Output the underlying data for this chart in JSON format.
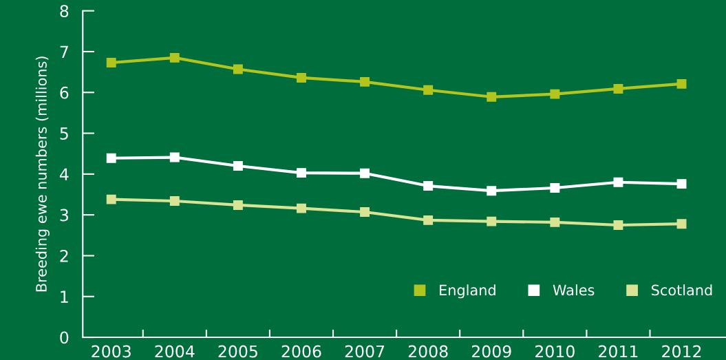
{
  "chart_data": {
    "type": "line",
    "ylabel": "Breeding ewe numbers (millions)",
    "categories": [
      "2003",
      "2004",
      "2005",
      "2006",
      "2007",
      "2008",
      "2009",
      "2010",
      "2011",
      "2012"
    ],
    "series": [
      {
        "name": "England",
        "color": "#b2c51f",
        "values": [
          6.73,
          6.85,
          6.57,
          6.36,
          6.26,
          6.06,
          5.89,
          5.96,
          6.09,
          6.21
        ]
      },
      {
        "name": "Wales",
        "color": "#ffffff",
        "values": [
          4.39,
          4.41,
          4.2,
          4.03,
          4.02,
          3.71,
          3.59,
          3.66,
          3.8,
          3.76
        ]
      },
      {
        "name": "Scotland",
        "color": "#d9e394",
        "values": [
          3.38,
          3.34,
          3.24,
          3.16,
          3.07,
          2.87,
          2.84,
          2.82,
          2.75,
          2.78
        ]
      }
    ],
    "ylim": [
      0,
      8
    ],
    "yticks": [
      0,
      1,
      2,
      3,
      4,
      5,
      6,
      7,
      8
    ],
    "grid": false,
    "legend": "bottom right",
    "marker": "square",
    "line_style": "solid"
  }
}
